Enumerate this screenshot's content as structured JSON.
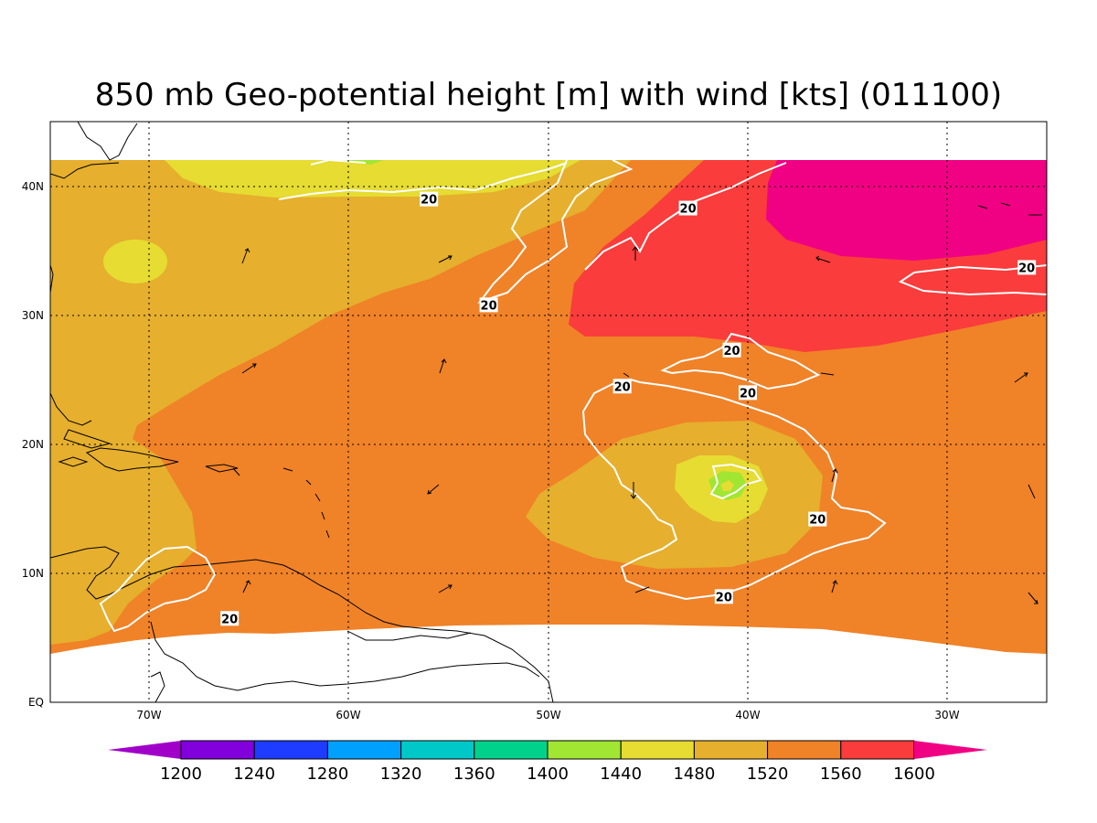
{
  "title": "850 mb Geo-potential height [m] with wind [kts] (011100)",
  "map": {
    "lon_range": [
      -75,
      -25
    ],
    "lat_range": [
      0,
      45
    ],
    "x_ticks": [
      "70W",
      "60W",
      "50W",
      "40W",
      "30W"
    ],
    "y_ticks": [
      "EQ",
      "10N",
      "20N",
      "30N",
      "40N"
    ],
    "grid": "dotted",
    "contour_labels": [
      {
        "text": "20",
        "lat": 39.0,
        "lon": -56.0
      },
      {
        "text": "20",
        "lat": 38.3,
        "lon": -43.0
      },
      {
        "text": "20",
        "lat": 33.7,
        "lon": -26.0
      },
      {
        "text": "20",
        "lat": 30.8,
        "lon": -53.0
      },
      {
        "text": "20",
        "lat": 27.3,
        "lon": -40.8
      },
      {
        "text": "20",
        "lat": 24.5,
        "lon": -46.3
      },
      {
        "text": "20",
        "lat": 24.0,
        "lon": -40.0
      },
      {
        "text": "20",
        "lat": 14.2,
        "lon": -36.5
      },
      {
        "text": "20",
        "lat": 8.2,
        "lon": -41.2
      },
      {
        "text": "20",
        "lat": 6.5,
        "lon": -66.0
      }
    ]
  },
  "colorbar": {
    "labels": [
      "1200",
      "1240",
      "1280",
      "1320",
      "1360",
      "1400",
      "1440",
      "1480",
      "1520",
      "1560",
      "1600"
    ],
    "colors": [
      "#a000c8",
      "#8200dc",
      "#1e3cff",
      "#00a0ff",
      "#00c8c8",
      "#00d28c",
      "#a0e632",
      "#e6dc32",
      "#e6af2d",
      "#f08228",
      "#fa3c3c",
      "#f00082"
    ]
  }
}
